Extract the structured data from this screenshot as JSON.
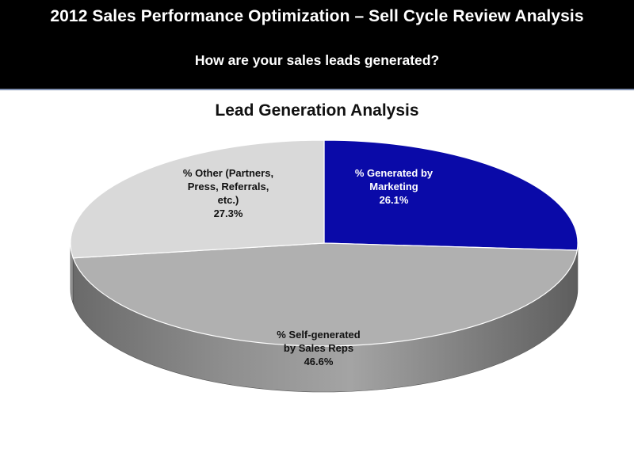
{
  "banner": {
    "title": "2012 Sales Performance Optimization – Sell Cycle Review Analysis",
    "subtitle": "How are your sales leads generated?",
    "background": "#000000"
  },
  "chart_data": {
    "type": "pie",
    "title": "Lead Generation Analysis",
    "three_d": true,
    "slices": [
      {
        "label_lines": [
          "% Generated by",
          "Marketing"
        ],
        "value": 26.1,
        "value_label": "26.1%",
        "color": "#0a0aa8",
        "text_color": "#ffffff"
      },
      {
        "label_lines": [
          "% Self-generated",
          "by Sales Reps"
        ],
        "value": 46.6,
        "value_label": "46.6%",
        "color": "#b0b0b0",
        "text_color": "#111111"
      },
      {
        "label_lines": [
          "% Other (Partners,",
          "Press, Referrals,",
          "etc.)"
        ],
        "value": 27.3,
        "value_label": "27.3%",
        "color": "#d9d9d9",
        "text_color": "#111111"
      }
    ]
  }
}
